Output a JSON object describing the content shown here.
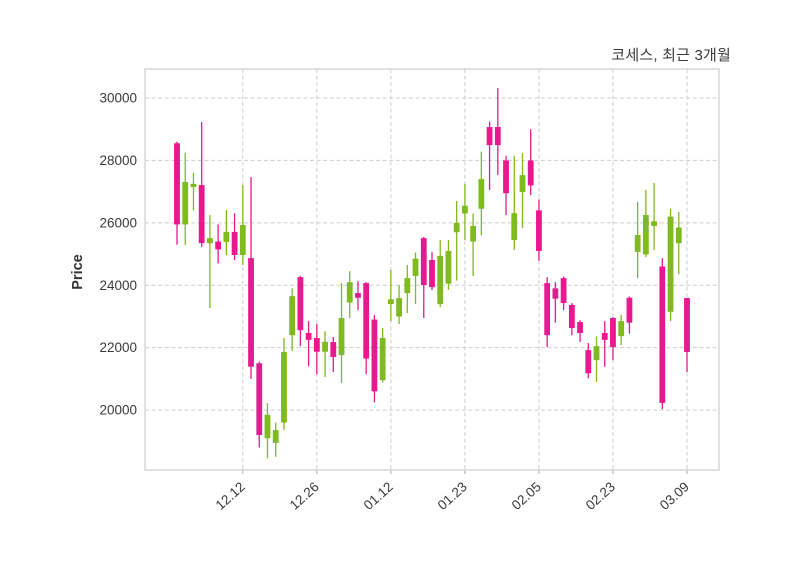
{
  "title": "코세스, 최근 3개월",
  "y_axis": {
    "label": "Price",
    "ticks": [
      20000,
      22000,
      24000,
      26000,
      28000,
      30000
    ]
  },
  "x_axis": {
    "tick_labels": [
      "12.12",
      "12.26",
      "01.12",
      "01.23",
      "02.05",
      "02.23",
      "03.09"
    ],
    "tick_indices": [
      8,
      17,
      26,
      35,
      44,
      53,
      62
    ]
  },
  "colors": {
    "up": "#7fba1e",
    "down": "#e8188e",
    "grid": "#cdcdcd",
    "border": "#d4d4d4",
    "text": "#3a3a3a",
    "background": "#ffffff"
  },
  "chart_data": {
    "type": "candlestick",
    "title": "코세스, 최근 3개월",
    "xlabel": "",
    "ylabel": "Price",
    "ylim": [
      18080,
      30930
    ],
    "grid": true,
    "grid_style": "dashed",
    "legend": false,
    "n_candles": 63,
    "ohlc_order": [
      "open",
      "high",
      "low",
      "close"
    ],
    "candles": [
      [
        28550,
        28600,
        25300,
        25950
      ],
      [
        25950,
        28250,
        25290,
        27310
      ],
      [
        27150,
        27600,
        26400,
        27250
      ],
      [
        27210,
        29230,
        25230,
        25350
      ],
      [
        25350,
        26250,
        23270,
        25510
      ],
      [
        25400,
        25950,
        24700,
        25150
      ],
      [
        25390,
        26410,
        24970,
        25710
      ],
      [
        25710,
        26310,
        24810,
        24970
      ],
      [
        24970,
        27210,
        24650,
        25930
      ],
      [
        24870,
        27470,
        21000,
        21390
      ],
      [
        21500,
        21550,
        18800,
        19200
      ],
      [
        19100,
        20220,
        18450,
        19850
      ],
      [
        18950,
        19600,
        18500,
        19360
      ],
      [
        19600,
        22310,
        19360,
        21860
      ],
      [
        22400,
        23900,
        21900,
        23650
      ],
      [
        24260,
        24300,
        22050,
        22560
      ],
      [
        22470,
        22850,
        21400,
        22250
      ],
      [
        22310,
        22760,
        21150,
        21870
      ],
      [
        21870,
        22530,
        21060,
        22190
      ],
      [
        22180,
        22340,
        21220,
        21700
      ],
      [
        21760,
        24070,
        20870,
        22950
      ],
      [
        23450,
        24450,
        22950,
        24100
      ],
      [
        23750,
        24130,
        23200,
        23600
      ],
      [
        24070,
        24100,
        21150,
        21650
      ],
      [
        22900,
        23050,
        20250,
        20600
      ],
      [
        20960,
        22630,
        20880,
        22310
      ],
      [
        23400,
        24490,
        22850,
        23550
      ],
      [
        23000,
        24000,
        22760,
        23590
      ],
      [
        23750,
        24650,
        23110,
        24230
      ],
      [
        24300,
        25050,
        23400,
        24850
      ],
      [
        25510,
        25550,
        22950,
        24010
      ],
      [
        24810,
        25060,
        23850,
        23940
      ],
      [
        23400,
        25450,
        23300,
        24940
      ],
      [
        24050,
        25450,
        23850,
        25100
      ],
      [
        25700,
        26700,
        24150,
        26000
      ],
      [
        26300,
        27250,
        25450,
        26550
      ],
      [
        25400,
        26300,
        24300,
        25900
      ],
      [
        26450,
        28280,
        25600,
        27400
      ],
      [
        29070,
        29250,
        27050,
        28490
      ],
      [
        29070,
        30320,
        27530,
        28490
      ],
      [
        28000,
        28150,
        26250,
        26950
      ],
      [
        25450,
        28150,
        25130,
        26310
      ],
      [
        26990,
        28230,
        25830,
        27530
      ],
      [
        28000,
        29000,
        26890,
        27200
      ],
      [
        26400,
        26750,
        24780,
        25100
      ],
      [
        24070,
        24260,
        22020,
        22400
      ],
      [
        23900,
        24100,
        22800,
        23570
      ],
      [
        24230,
        24280,
        23200,
        23430
      ],
      [
        23370,
        23430,
        22400,
        22630
      ],
      [
        22820,
        22880,
        22180,
        22470
      ],
      [
        21920,
        22150,
        21020,
        21180
      ],
      [
        21600,
        22360,
        20900,
        22050
      ],
      [
        22470,
        22850,
        21390,
        22250
      ],
      [
        22950,
        22980,
        21600,
        22020
      ],
      [
        22370,
        23050,
        22080,
        22850
      ],
      [
        23600,
        23640,
        22450,
        22800
      ],
      [
        25070,
        26670,
        24230,
        25610
      ],
      [
        24990,
        27050,
        24900,
        26250
      ],
      [
        25900,
        27280,
        25130,
        26050
      ],
      [
        24600,
        24870,
        20030,
        20230
      ],
      [
        23150,
        26450,
        22850,
        26200
      ],
      [
        25350,
        26350,
        24350,
        25850
      ],
      [
        23590,
        23590,
        21220,
        21860
      ]
    ]
  }
}
